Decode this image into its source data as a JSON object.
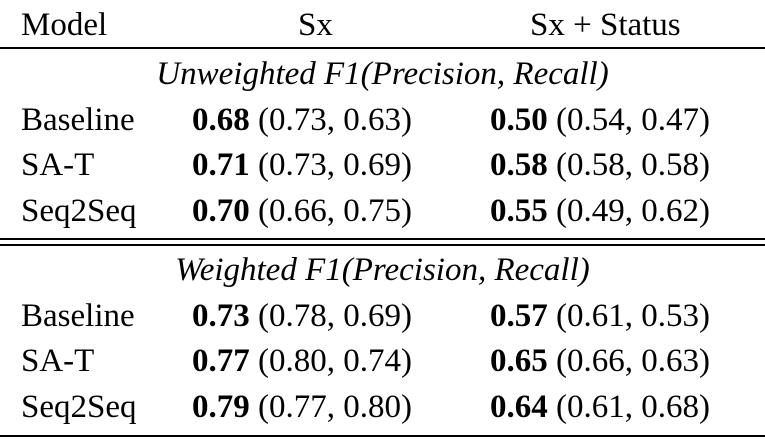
{
  "header": {
    "model": "Model",
    "sx": "Sx",
    "status": "Sx + Status"
  },
  "sections": [
    {
      "title": "Unweighted F1(Precision, Recall)",
      "rows": [
        {
          "model": "Baseline",
          "sx_f1": "0.68",
          "sx_pr": "(0.73, 0.63)",
          "st_f1": "0.50",
          "st_pr": "(0.54, 0.47)"
        },
        {
          "model": "SA-T",
          "sx_f1": "0.71",
          "sx_pr": "(0.73, 0.69)",
          "st_f1": "0.58",
          "st_pr": "(0.58, 0.58)"
        },
        {
          "model": "Seq2Seq",
          "sx_f1": "0.70",
          "sx_pr": "(0.66, 0.75)",
          "st_f1": "0.55",
          "st_pr": "(0.49, 0.62)"
        }
      ]
    },
    {
      "title": "Weighted F1(Precision, Recall)",
      "rows": [
        {
          "model": "Baseline",
          "sx_f1": "0.73",
          "sx_pr": "(0.78, 0.69)",
          "st_f1": "0.57",
          "st_pr": "(0.61, 0.53)"
        },
        {
          "model": "SA-T",
          "sx_f1": "0.77",
          "sx_pr": "(0.80, 0.74)",
          "st_f1": "0.65",
          "st_pr": "(0.66, 0.63)"
        },
        {
          "model": "Seq2Seq",
          "sx_f1": "0.79",
          "sx_pr": "(0.77, 0.80)",
          "st_f1": "0.64",
          "st_pr": "(0.61, 0.68)"
        }
      ]
    }
  ]
}
